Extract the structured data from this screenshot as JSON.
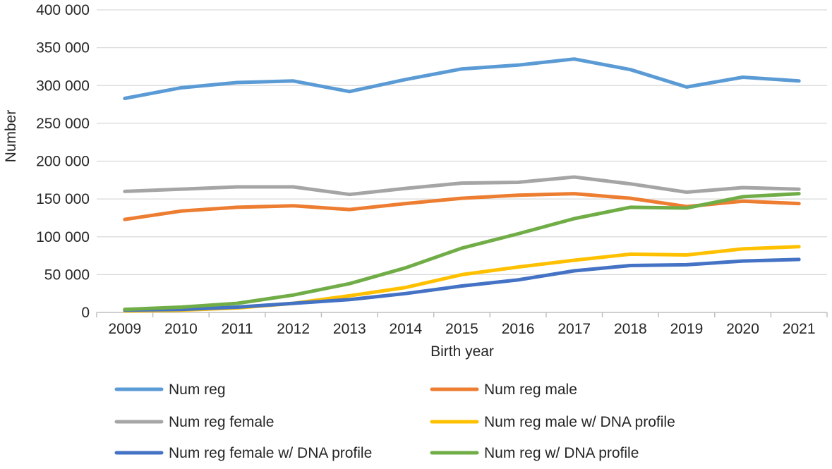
{
  "chart_data": {
    "type": "line",
    "title": "",
    "xlabel": "Birth year",
    "ylabel": "Number",
    "x": [
      "2009",
      "2010",
      "2011",
      "2012",
      "2013",
      "2014",
      "2015",
      "2016",
      "2017",
      "2018",
      "2019",
      "2020",
      "2021"
    ],
    "ylim": [
      0,
      400000
    ],
    "yticks": [
      0,
      50000,
      100000,
      150000,
      200000,
      250000,
      300000,
      350000,
      400000
    ],
    "ytick_labels": [
      "0",
      "50 000",
      "100 000",
      "150 000",
      "200 000",
      "250 000",
      "300 000",
      "350 000",
      "400 000"
    ],
    "grid": "horizontal",
    "legend_position": "bottom",
    "series": [
      {
        "name": "Num reg",
        "color": "#5B9BD5",
        "values": [
          283000,
          297000,
          304000,
          306000,
          292000,
          308000,
          322000,
          327000,
          335000,
          321000,
          298000,
          311000,
          306000
        ]
      },
      {
        "name": "Num reg male",
        "color": "#ED7D31",
        "values": [
          123000,
          134000,
          139000,
          141000,
          136000,
          144000,
          151000,
          155000,
          157000,
          151000,
          140000,
          147000,
          144000
        ]
      },
      {
        "name": "Num reg female",
        "color": "#A5A5A5",
        "values": [
          160000,
          163000,
          166000,
          166000,
          156000,
          164000,
          171000,
          172000,
          179000,
          170000,
          159000,
          165000,
          163000
        ]
      },
      {
        "name": "Num reg male w/ DNA profile",
        "color": "#FFC000",
        "values": [
          2000,
          3000,
          6000,
          12000,
          22000,
          33000,
          50000,
          60000,
          69000,
          77000,
          76000,
          84000,
          87000
        ]
      },
      {
        "name": "Num reg female w/ DNA profile",
        "color": "#4472C4",
        "values": [
          3000,
          4000,
          7000,
          12000,
          17000,
          25000,
          35000,
          43000,
          55000,
          62000,
          63000,
          68000,
          70000
        ]
      },
      {
        "name": "Num reg w/ DNA profile",
        "color": "#70AD47",
        "values": [
          4000,
          7000,
          12000,
          23000,
          38000,
          59000,
          85000,
          104000,
          124000,
          139000,
          138000,
          153000,
          157000
        ]
      }
    ]
  }
}
